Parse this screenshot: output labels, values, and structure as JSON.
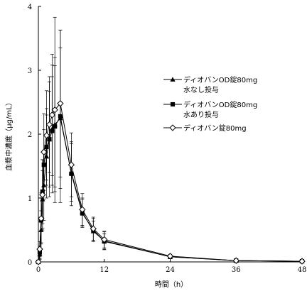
{
  "chart_data": {
    "type": "line",
    "title": "",
    "xlabel": "時間（h）",
    "ylabel": "血漿中濃度（μg/mL）",
    "xlim": [
      0,
      48
    ],
    "ylim": [
      0,
      4
    ],
    "x_ticks": [
      "0",
      "12",
      "24",
      "36",
      "48"
    ],
    "y_ticks": [
      "0",
      "1",
      "2",
      "3",
      "4"
    ],
    "x_tick_values": [
      0,
      12,
      24,
      36,
      48
    ],
    "y_tick_values": [
      0,
      1,
      2,
      3,
      4
    ],
    "grid": false,
    "legend_position": "right",
    "series": [
      {
        "name": [
          "ディオバンOD錠80mg",
          "水なし投与"
        ],
        "marker": "triangle-filled",
        "color": "#000000",
        "x": [
          0,
          0.25,
          0.5,
          0.75,
          1,
          1.5,
          2,
          2.5,
          3,
          4,
          6,
          8,
          10,
          12,
          24,
          36,
          48
        ],
        "y": [
          0,
          0.12,
          0.5,
          0.98,
          1.2,
          1.65,
          1.92,
          2.08,
          2.15,
          2.25,
          1.4,
          0.78,
          0.48,
          0.33,
          0.08,
          0.02,
          0.01
        ],
        "err": [
          0,
          0.08,
          0.3,
          0.45,
          0.55,
          0.65,
          0.9,
          1.0,
          1.05,
          1.1,
          0.45,
          0.22,
          0.16,
          0.14,
          0.03,
          0.01,
          0.01
        ]
      },
      {
        "name": [
          "ディオバンOD錠80mg",
          "水あり投与"
        ],
        "marker": "square-filled",
        "color": "#000000",
        "x": [
          0,
          0.25,
          0.5,
          0.75,
          1,
          1.5,
          2,
          2.5,
          3,
          4,
          6,
          8,
          10,
          12,
          24,
          36,
          48
        ],
        "y": [
          0,
          0.15,
          0.65,
          1.1,
          1.52,
          1.8,
          1.92,
          2.05,
          2.12,
          2.28,
          1.38,
          0.76,
          0.5,
          0.32,
          0.08,
          0.02,
          0.01
        ],
        "err": [
          0,
          0.1,
          0.35,
          0.5,
          0.55,
          0.6,
          0.75,
          0.85,
          0.95,
          1.35,
          0.5,
          0.22,
          0.18,
          0.12,
          0.03,
          0.01,
          0.01
        ]
      },
      {
        "name": [
          "ディオバン錠80mg"
        ],
        "marker": "diamond-open",
        "color": "#000000",
        "x": [
          0,
          0.25,
          0.5,
          0.75,
          1,
          1.5,
          2,
          2.5,
          3,
          4,
          6,
          8,
          10,
          12,
          24,
          36,
          48
        ],
        "y": [
          0,
          0.2,
          0.68,
          1.05,
          1.72,
          1.98,
          2.15,
          2.3,
          2.38,
          2.48,
          1.52,
          0.82,
          0.52,
          0.35,
          0.09,
          0.02,
          0.01
        ],
        "err": [
          0,
          0.12,
          0.4,
          0.55,
          0.6,
          0.7,
          0.75,
          0.95,
          1.45,
          1.15,
          0.5,
          0.25,
          0.18,
          0.13,
          0.03,
          0.01,
          0.01
        ]
      }
    ]
  }
}
